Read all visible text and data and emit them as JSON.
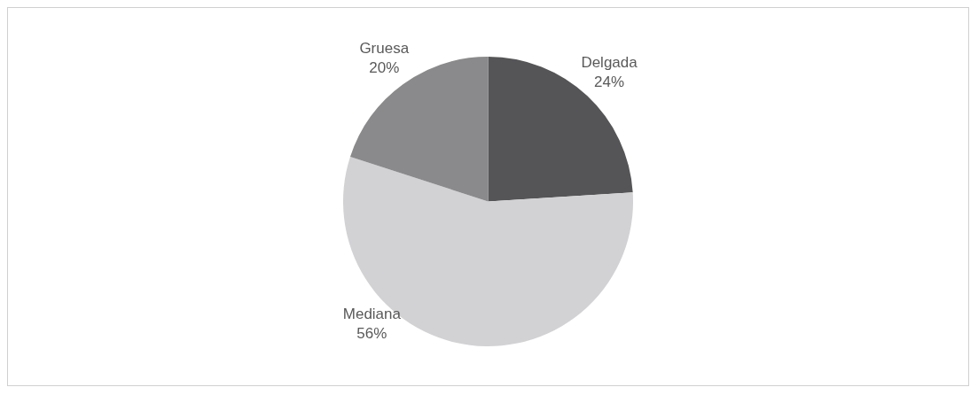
{
  "chart_data": {
    "type": "pie",
    "categories": [
      "Delgada",
      "Mediana",
      "Gruesa"
    ],
    "values": [
      24,
      56,
      20
    ],
    "value_labels": [
      "24%",
      "56%",
      "20%"
    ],
    "colors": [
      "#555557",
      "#d2d2d4",
      "#8a8a8c"
    ],
    "legend": false
  }
}
